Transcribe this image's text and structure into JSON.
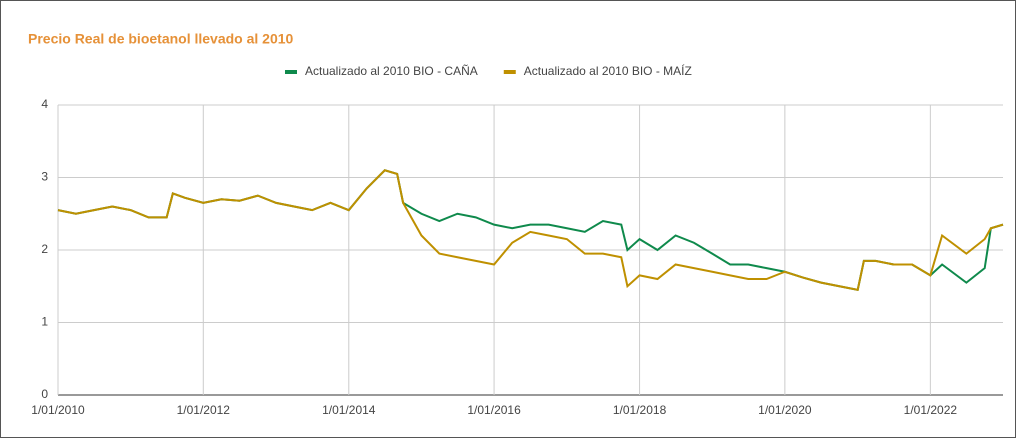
{
  "chart_data": {
    "type": "line",
    "title": "Precio Real de bioetanol llevado al 2010",
    "x": [
      "2010-01-01",
      "2010-04-01",
      "2010-07-01",
      "2010-10-01",
      "2011-01-01",
      "2011-04-01",
      "2011-07-01",
      "2011-08-01",
      "2011-10-01",
      "2012-01-01",
      "2012-04-01",
      "2012-07-01",
      "2012-10-01",
      "2013-01-01",
      "2013-04-01",
      "2013-07-01",
      "2013-10-01",
      "2014-01-01",
      "2014-04-01",
      "2014-07-01",
      "2014-09-01",
      "2014-10-01",
      "2015-01-01",
      "2015-04-01",
      "2015-07-01",
      "2015-10-01",
      "2016-01-01",
      "2016-04-01",
      "2016-07-01",
      "2016-10-01",
      "2017-01-01",
      "2017-04-01",
      "2017-07-01",
      "2017-10-01",
      "2017-11-01",
      "2018-01-01",
      "2018-04-01",
      "2018-07-01",
      "2018-10-01",
      "2019-01-01",
      "2019-04-01",
      "2019-07-01",
      "2019-10-01",
      "2020-01-01",
      "2020-04-01",
      "2020-07-01",
      "2020-10-01",
      "2021-01-01",
      "2021-02-01",
      "2021-04-01",
      "2021-07-01",
      "2021-10-01",
      "2022-01-01",
      "2022-03-01",
      "2022-07-01",
      "2022-10-01",
      "2022-11-01",
      "2023-01-01"
    ],
    "series": [
      {
        "name": "Actualizado al 2010 BIO - CAÑA",
        "color": "#0f8a4c",
        "values": [
          2.55,
          2.5,
          2.55,
          2.6,
          2.55,
          2.45,
          2.45,
          2.78,
          2.72,
          2.65,
          2.7,
          2.68,
          2.75,
          2.65,
          2.6,
          2.55,
          2.65,
          2.55,
          2.85,
          3.1,
          3.05,
          2.65,
          2.5,
          2.4,
          2.5,
          2.45,
          2.35,
          2.3,
          2.35,
          2.35,
          2.3,
          2.25,
          2.4,
          2.35,
          2.0,
          2.15,
          2.0,
          2.2,
          2.1,
          1.95,
          1.8,
          1.8,
          1.75,
          1.7,
          1.62,
          1.55,
          1.5,
          1.45,
          1.85,
          1.85,
          1.8,
          1.8,
          1.65,
          1.8,
          1.55,
          1.75,
          2.3,
          2.35
        ]
      },
      {
        "name": "Actualizado al 2010 BIO - MAÍZ",
        "color": "#bf9000",
        "values": [
          2.55,
          2.5,
          2.55,
          2.6,
          2.55,
          2.45,
          2.45,
          2.78,
          2.72,
          2.65,
          2.7,
          2.68,
          2.75,
          2.65,
          2.6,
          2.55,
          2.65,
          2.55,
          2.85,
          3.1,
          3.05,
          2.65,
          2.2,
          1.95,
          1.9,
          1.85,
          1.8,
          2.1,
          2.25,
          2.2,
          2.15,
          1.95,
          1.95,
          1.9,
          1.5,
          1.65,
          1.6,
          1.8,
          1.75,
          1.7,
          1.65,
          1.6,
          1.6,
          1.7,
          1.62,
          1.55,
          1.5,
          1.45,
          1.85,
          1.85,
          1.8,
          1.8,
          1.65,
          2.2,
          1.95,
          2.15,
          2.3,
          2.35
        ]
      }
    ],
    "xlim": [
      "2010-01-01",
      "2023-01-01"
    ],
    "xticks": [
      {
        "value": "2010-01-01",
        "label": "1/01/2010"
      },
      {
        "value": "2012-01-01",
        "label": "1/01/2012"
      },
      {
        "value": "2014-01-01",
        "label": "1/01/2014"
      },
      {
        "value": "2016-01-01",
        "label": "1/01/2016"
      },
      {
        "value": "2018-01-01",
        "label": "1/01/2018"
      },
      {
        "value": "2020-01-01",
        "label": "1/01/2020"
      },
      {
        "value": "2022-01-01",
        "label": "1/01/2022"
      }
    ],
    "ylim": [
      0,
      4
    ],
    "yticks": [
      0,
      1,
      2,
      3,
      4
    ],
    "grid": true,
    "legend": "top"
  }
}
